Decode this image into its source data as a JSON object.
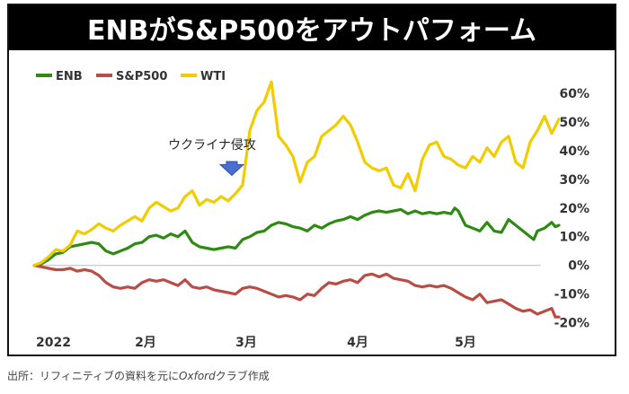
{
  "chart_data": {
    "type": "line",
    "title": "ENBがS&P500をアウトパフォーム",
    "legend": [
      {
        "name": "ENB",
        "color": "#2e8a12"
      },
      {
        "name": "S&P500",
        "color": "#b94c45"
      },
      {
        "name": "WTI",
        "color": "#f0cc00"
      }
    ],
    "legend_position": "top-left",
    "x_ticks": [
      "2022",
      "2月",
      "3月",
      "4月",
      "5月"
    ],
    "x_tick_days": [
      1,
      32,
      60,
      91,
      121
    ],
    "x_range_days": [
      1,
      142
    ],
    "y_ticks": [
      "60%",
      "50%",
      "40%",
      "30%",
      "20%",
      "10%",
      "0%",
      "-10%",
      "-20%"
    ],
    "y_tick_values": [
      60,
      50,
      40,
      30,
      20,
      10,
      0,
      -10,
      -20
    ],
    "ylim": [
      -22,
      65
    ],
    "annotation": {
      "text": "ウクライナ侵攻",
      "day": 56,
      "value": 27
    },
    "series": [
      {
        "name": "ENB",
        "color": "#2e8a12",
        "points": [
          [
            1,
            0
          ],
          [
            3,
            0.5
          ],
          [
            5,
            2
          ],
          [
            7,
            4
          ],
          [
            9,
            4.5
          ],
          [
            11,
            6.5
          ],
          [
            13,
            7
          ],
          [
            15,
            7.5
          ],
          [
            17,
            8
          ],
          [
            19,
            7.5
          ],
          [
            21,
            5
          ],
          [
            23,
            4
          ],
          [
            25,
            5
          ],
          [
            27,
            6
          ],
          [
            29,
            7.5
          ],
          [
            31,
            8
          ],
          [
            33,
            10
          ],
          [
            35,
            10.5
          ],
          [
            37,
            9.5
          ],
          [
            39,
            11
          ],
          [
            41,
            10
          ],
          [
            43,
            12
          ],
          [
            45,
            8
          ],
          [
            47,
            6.5
          ],
          [
            49,
            6
          ],
          [
            51,
            5.5
          ],
          [
            53,
            6
          ],
          [
            55,
            6.5
          ],
          [
            57,
            6
          ],
          [
            59,
            9
          ],
          [
            61,
            10
          ],
          [
            63,
            11.5
          ],
          [
            65,
            12
          ],
          [
            67,
            14
          ],
          [
            69,
            15
          ],
          [
            71,
            14.5
          ],
          [
            73,
            13.5
          ],
          [
            75,
            13
          ],
          [
            77,
            12
          ],
          [
            79,
            14
          ],
          [
            81,
            13
          ],
          [
            83,
            14.5
          ],
          [
            85,
            15.5
          ],
          [
            87,
            16
          ],
          [
            89,
            17
          ],
          [
            91,
            16
          ],
          [
            93,
            17.5
          ],
          [
            95,
            18.5
          ],
          [
            97,
            19
          ],
          [
            99,
            18.5
          ],
          [
            101,
            19
          ],
          [
            103,
            19.5
          ],
          [
            105,
            18
          ],
          [
            107,
            19
          ],
          [
            109,
            18
          ],
          [
            111,
            18.5
          ],
          [
            113,
            18
          ],
          [
            115,
            18.5
          ],
          [
            117,
            18
          ],
          [
            118,
            20
          ],
          [
            119,
            19
          ],
          [
            121,
            14
          ],
          [
            123,
            13
          ],
          [
            125,
            12
          ],
          [
            127,
            15
          ],
          [
            129,
            12
          ],
          [
            131,
            11.5
          ],
          [
            133,
            16
          ],
          [
            135,
            14
          ],
          [
            137,
            12
          ],
          [
            139,
            10
          ],
          [
            140,
            9
          ],
          [
            141,
            12
          ],
          [
            143,
            13
          ],
          [
            145,
            15
          ],
          [
            146,
            13.5
          ],
          [
            147,
            14
          ]
        ]
      },
      {
        "name": "S&P500",
        "color": "#b94c45",
        "points": [
          [
            1,
            0
          ],
          [
            3,
            -0.5
          ],
          [
            5,
            -1
          ],
          [
            7,
            -1.5
          ],
          [
            9,
            -1.5
          ],
          [
            11,
            -1
          ],
          [
            13,
            -2
          ],
          [
            15,
            -1.5
          ],
          [
            17,
            -2
          ],
          [
            19,
            -3.5
          ],
          [
            21,
            -6
          ],
          [
            23,
            -7.5
          ],
          [
            25,
            -8
          ],
          [
            27,
            -7.5
          ],
          [
            29,
            -8
          ],
          [
            31,
            -6
          ],
          [
            33,
            -5
          ],
          [
            35,
            -5.5
          ],
          [
            37,
            -5
          ],
          [
            39,
            -6
          ],
          [
            41,
            -7
          ],
          [
            43,
            -5
          ],
          [
            45,
            -7.5
          ],
          [
            47,
            -8
          ],
          [
            49,
            -7.5
          ],
          [
            51,
            -8.5
          ],
          [
            53,
            -9
          ],
          [
            55,
            -9.5
          ],
          [
            57,
            -10
          ],
          [
            59,
            -8
          ],
          [
            61,
            -7.5
          ],
          [
            63,
            -8
          ],
          [
            65,
            -9
          ],
          [
            67,
            -10
          ],
          [
            69,
            -11
          ],
          [
            71,
            -10.5
          ],
          [
            73,
            -11
          ],
          [
            75,
            -12
          ],
          [
            77,
            -10
          ],
          [
            79,
            -10.5
          ],
          [
            81,
            -8
          ],
          [
            83,
            -6
          ],
          [
            85,
            -6.5
          ],
          [
            87,
            -5.5
          ],
          [
            89,
            -5
          ],
          [
            91,
            -6
          ],
          [
            93,
            -3.5
          ],
          [
            95,
            -3
          ],
          [
            97,
            -4
          ],
          [
            99,
            -3
          ],
          [
            101,
            -4.5
          ],
          [
            103,
            -5
          ],
          [
            105,
            -5.5
          ],
          [
            107,
            -7
          ],
          [
            109,
            -7.5
          ],
          [
            111,
            -7
          ],
          [
            113,
            -7.5
          ],
          [
            115,
            -7
          ],
          [
            117,
            -8
          ],
          [
            119,
            -9.5
          ],
          [
            121,
            -11
          ],
          [
            123,
            -12
          ],
          [
            125,
            -10
          ],
          [
            127,
            -13
          ],
          [
            129,
            -12.5
          ],
          [
            131,
            -12
          ],
          [
            133,
            -13.5
          ],
          [
            135,
            -15
          ],
          [
            137,
            -16
          ],
          [
            139,
            -15.5
          ],
          [
            141,
            -17
          ],
          [
            143,
            -16
          ],
          [
            145,
            -15
          ],
          [
            146,
            -18
          ],
          [
            147,
            -18
          ]
        ]
      },
      {
        "name": "WTI",
        "color": "#f0cc00",
        "points": [
          [
            1,
            0
          ],
          [
            3,
            1
          ],
          [
            5,
            3
          ],
          [
            7,
            5.5
          ],
          [
            9,
            5
          ],
          [
            11,
            7
          ],
          [
            13,
            12
          ],
          [
            15,
            11
          ],
          [
            17,
            12.5
          ],
          [
            19,
            14.5
          ],
          [
            21,
            13
          ],
          [
            23,
            12
          ],
          [
            25,
            14
          ],
          [
            27,
            15.5
          ],
          [
            29,
            17
          ],
          [
            31,
            15.5
          ],
          [
            33,
            20
          ],
          [
            35,
            22
          ],
          [
            37,
            20.5
          ],
          [
            39,
            19
          ],
          [
            41,
            20
          ],
          [
            43,
            24
          ],
          [
            45,
            26
          ],
          [
            47,
            21
          ],
          [
            49,
            23
          ],
          [
            51,
            22
          ],
          [
            53,
            24
          ],
          [
            55,
            22.5
          ],
          [
            57,
            25
          ],
          [
            59,
            28
          ],
          [
            61,
            47
          ],
          [
            63,
            54
          ],
          [
            65,
            57
          ],
          [
            67,
            64
          ],
          [
            69,
            45
          ],
          [
            71,
            42
          ],
          [
            73,
            38
          ],
          [
            75,
            29
          ],
          [
            77,
            36
          ],
          [
            79,
            38
          ],
          [
            81,
            45
          ],
          [
            83,
            47
          ],
          [
            85,
            49
          ],
          [
            87,
            52
          ],
          [
            89,
            49
          ],
          [
            91,
            43
          ],
          [
            93,
            36
          ],
          [
            95,
            34
          ],
          [
            97,
            33
          ],
          [
            99,
            34
          ],
          [
            101,
            28
          ],
          [
            103,
            27
          ],
          [
            105,
            32
          ],
          [
            107,
            26
          ],
          [
            109,
            37
          ],
          [
            111,
            42
          ],
          [
            113,
            43
          ],
          [
            115,
            38
          ],
          [
            117,
            37
          ],
          [
            119,
            35
          ],
          [
            121,
            34
          ],
          [
            123,
            38
          ],
          [
            125,
            36
          ],
          [
            127,
            41
          ],
          [
            129,
            38
          ],
          [
            131,
            43
          ],
          [
            133,
            45
          ],
          [
            135,
            36
          ],
          [
            137,
            34
          ],
          [
            139,
            43
          ],
          [
            141,
            47
          ],
          [
            143,
            52
          ],
          [
            145,
            46
          ],
          [
            147,
            51
          ]
        ]
      }
    ]
  },
  "footer": {
    "caption_before": "出所：リフィニティブの資料を元に",
    "caption_brand": "Oxford",
    "caption_after": "クラブ作成"
  }
}
